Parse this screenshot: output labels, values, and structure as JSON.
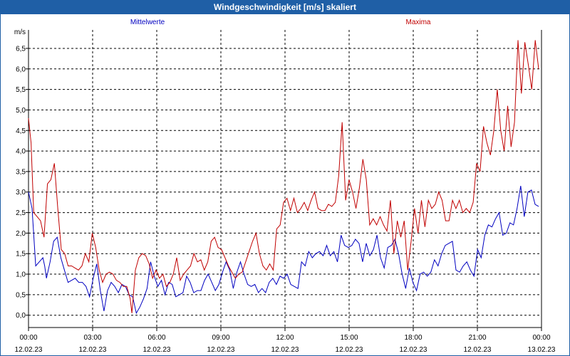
{
  "window": {
    "title": "Windgeschwindigkeit [m/s] skaliert"
  },
  "chart_data": {
    "type": "line",
    "title": "Windgeschwindigkeit [m/s] skaliert",
    "ylabel": "m/s",
    "ylim": [
      -0.3,
      6.95
    ],
    "yticks": [
      "0,0",
      "0,5",
      "1,0",
      "1,5",
      "2,0",
      "2,5",
      "3,0",
      "3,5",
      "4,0",
      "4,5",
      "5,0",
      "5,5",
      "6,0",
      "6,5"
    ],
    "xticks": [
      {
        "time": "00:00",
        "date": "12.02.23"
      },
      {
        "time": "03:00",
        "date": "12.02.23"
      },
      {
        "time": "06:00",
        "date": "12.02.23"
      },
      {
        "time": "09:00",
        "date": "12.02.23"
      },
      {
        "time": "12:00",
        "date": "12.02.23"
      },
      {
        "time": "15:00",
        "date": "12.02.23"
      },
      {
        "time": "18:00",
        "date": "12.02.23"
      },
      {
        "time": "21:00",
        "date": "12.02.23"
      },
      {
        "time": "00:00",
        "date": "13.02.23"
      }
    ],
    "x_unit": "hours since 12.02.23 00:00",
    "grid": true,
    "series": [
      {
        "name": "Mittelwerte",
        "color": "#0000c0",
        "points": [
          [
            0,
            3.0
          ],
          [
            0.2,
            2.6
          ],
          [
            0.4,
            1.2
          ],
          [
            0.6,
            1.3
          ],
          [
            0.8,
            1.4
          ],
          [
            0.9,
            1.2
          ],
          [
            1.0,
            0.9
          ],
          [
            1.2,
            1.3
          ],
          [
            1.4,
            1.8
          ],
          [
            1.6,
            1.9
          ],
          [
            1.8,
            1.4
          ],
          [
            2.0,
            1.1
          ],
          [
            2.2,
            0.8
          ],
          [
            2.4,
            0.85
          ],
          [
            2.6,
            0.9
          ],
          [
            2.8,
            0.8
          ],
          [
            3.0,
            0.8
          ],
          [
            3.2,
            0.7
          ],
          [
            3.4,
            0.45
          ],
          [
            3.6,
            0.9
          ],
          [
            3.8,
            1.25
          ],
          [
            4.0,
            0.6
          ],
          [
            4.2,
            0.1
          ],
          [
            4.4,
            0.6
          ],
          [
            4.6,
            0.8
          ],
          [
            4.8,
            0.7
          ],
          [
            5.0,
            0.55
          ],
          [
            5.2,
            0.75
          ],
          [
            5.4,
            0.7
          ],
          [
            5.6,
            0.5
          ],
          [
            5.8,
            0.45
          ],
          [
            6.0,
            0.05
          ],
          [
            6.2,
            0.2
          ],
          [
            6.4,
            0.4
          ],
          [
            6.6,
            0.65
          ],
          [
            6.8,
            1.3
          ],
          [
            7.0,
            0.95
          ],
          [
            7.2,
            0.7
          ],
          [
            7.4,
            0.85
          ],
          [
            7.6,
            0.5
          ],
          [
            7.8,
            0.8
          ],
          [
            8.0,
            0.75
          ],
          [
            8.2,
            0.45
          ],
          [
            8.4,
            0.5
          ],
          [
            8.6,
            0.55
          ],
          [
            8.8,
            0.95
          ],
          [
            9.0,
            0.8
          ],
          [
            9.2,
            0.55
          ],
          [
            9.4,
            0.6
          ],
          [
            9.6,
            0.6
          ],
          [
            9.8,
            0.85
          ],
          [
            10.0,
            1.0
          ],
          [
            10.2,
            0.8
          ],
          [
            10.4,
            0.6
          ],
          [
            10.6,
            0.75
          ],
          [
            10.8,
            1.05
          ],
          [
            11.0,
            1.3
          ],
          [
            11.2,
            1.1
          ],
          [
            11.4,
            0.65
          ],
          [
            11.6,
            1.05
          ],
          [
            11.8,
            1.3
          ],
          [
            12.0,
            1.0
          ],
          [
            12.2,
            0.75
          ],
          [
            12.4,
            0.7
          ],
          [
            12.6,
            0.75
          ],
          [
            12.8,
            0.55
          ],
          [
            13.0,
            0.65
          ],
          [
            13.2,
            0.55
          ],
          [
            13.4,
            0.8
          ],
          [
            13.6,
            0.9
          ],
          [
            13.8,
            0.75
          ],
          [
            14.0,
            0.95
          ],
          [
            14.2,
            0.9
          ],
          [
            14.4,
            1.0
          ],
          [
            14.6,
            0.75
          ],
          [
            14.8,
            0.7
          ],
          [
            15.0,
            0.65
          ],
          [
            15.2,
            1.3
          ],
          [
            15.4,
            1.2
          ],
          [
            15.6,
            1.55
          ],
          [
            15.8,
            1.4
          ],
          [
            16.0,
            1.5
          ],
          [
            16.2,
            1.55
          ],
          [
            16.4,
            1.45
          ],
          [
            16.6,
            1.7
          ],
          [
            16.8,
            1.45
          ],
          [
            17.0,
            1.55
          ],
          [
            17.2,
            1.3
          ],
          [
            17.4,
            1.95
          ],
          [
            17.6,
            1.7
          ],
          [
            17.8,
            1.65
          ],
          [
            18.0,
            1.7
          ],
          [
            18.2,
            1.85
          ],
          [
            18.4,
            1.75
          ],
          [
            18.6,
            1.3
          ],
          [
            18.8,
            1.75
          ],
          [
            19.0,
            1.45
          ],
          [
            19.2,
            1.6
          ],
          [
            19.4,
            1.95
          ],
          [
            19.6,
            1.4
          ],
          [
            19.8,
            1.15
          ],
          [
            20.0,
            1.65
          ],
          [
            20.2,
            1.7
          ],
          [
            20.4,
            1.85
          ],
          [
            20.6,
            1.5
          ],
          [
            20.8,
            1.0
          ],
          [
            21.0,
            0.65
          ],
          [
            21.2,
            1.15
          ],
          [
            21.4,
            0.8
          ],
          [
            21.6,
            0.6
          ],
          [
            21.8,
            1.0
          ],
          [
            22.0,
            1.05
          ],
          [
            22.2,
            0.95
          ],
          [
            22.4,
            1.05
          ],
          [
            22.6,
            1.35
          ],
          [
            22.8,
            1.2
          ],
          [
            23.0,
            1.5
          ],
          [
            23.2,
            1.7
          ],
          [
            23.4,
            1.75
          ],
          [
            23.6,
            1.8
          ],
          [
            23.8,
            1.1
          ],
          [
            24.0,
            1.05
          ],
          [
            24.2,
            1.2
          ],
          [
            24.4,
            1.3
          ],
          [
            24.6,
            1.1
          ],
          [
            24.8,
            0.95
          ],
          [
            25.0,
            1.6
          ],
          [
            25.2,
            1.4
          ],
          [
            25.4,
            1.95
          ],
          [
            25.6,
            2.2
          ],
          [
            25.8,
            2.15
          ],
          [
            26.0,
            2.35
          ],
          [
            26.2,
            2.5
          ],
          [
            26.4,
            1.95
          ],
          [
            26.6,
            2.0
          ],
          [
            26.8,
            2.25
          ],
          [
            27.0,
            2.2
          ],
          [
            27.2,
            2.6
          ],
          [
            27.4,
            3.15
          ],
          [
            27.6,
            2.4
          ],
          [
            27.8,
            3.0
          ],
          [
            28.0,
            3.05
          ],
          [
            28.2,
            2.7
          ],
          [
            28.4,
            2.65
          ]
        ]
      },
      {
        "name": "Maxima",
        "color": "#c00000",
        "points": [
          [
            0,
            4.8
          ],
          [
            0.15,
            4.2
          ],
          [
            0.3,
            2.5
          ],
          [
            0.5,
            2.4
          ],
          [
            0.7,
            2.3
          ],
          [
            0.9,
            1.9
          ],
          [
            1.1,
            3.2
          ],
          [
            1.3,
            3.3
          ],
          [
            1.5,
            3.7
          ],
          [
            1.7,
            2.6
          ],
          [
            1.9,
            1.6
          ],
          [
            2.1,
            1.5
          ],
          [
            2.3,
            1.2
          ],
          [
            2.5,
            1.2
          ],
          [
            2.7,
            1.15
          ],
          [
            2.9,
            1.1
          ],
          [
            3.1,
            1.2
          ],
          [
            3.3,
            1.5
          ],
          [
            3.5,
            1.3
          ],
          [
            3.7,
            2.0
          ],
          [
            3.9,
            1.65
          ],
          [
            4.1,
            1.1
          ],
          [
            4.3,
            0.8
          ],
          [
            4.5,
            1.0
          ],
          [
            4.7,
            1.05
          ],
          [
            4.9,
            1.0
          ],
          [
            5.1,
            0.85
          ],
          [
            5.3,
            0.8
          ],
          [
            5.5,
            0.7
          ],
          [
            5.7,
            0.7
          ],
          [
            5.9,
            0.4
          ],
          [
            6.0,
            0.05
          ],
          [
            6.2,
            1.1
          ],
          [
            6.4,
            1.4
          ],
          [
            6.6,
            1.5
          ],
          [
            6.8,
            1.45
          ],
          [
            7.0,
            1.25
          ],
          [
            7.2,
            0.9
          ],
          [
            7.4,
            1.1
          ],
          [
            7.6,
            0.9
          ],
          [
            7.8,
            1.0
          ],
          [
            8.0,
            0.7
          ],
          [
            8.2,
            0.8
          ],
          [
            8.4,
            1.0
          ],
          [
            8.6,
            1.4
          ],
          [
            8.8,
            0.85
          ],
          [
            9.0,
            1.0
          ],
          [
            9.2,
            1.1
          ],
          [
            9.4,
            1.2
          ],
          [
            9.6,
            1.5
          ],
          [
            9.8,
            1.3
          ],
          [
            10.0,
            1.35
          ],
          [
            10.2,
            1.1
          ],
          [
            10.4,
            1.3
          ],
          [
            10.6,
            1.8
          ],
          [
            10.8,
            1.9
          ],
          [
            11.0,
            1.65
          ],
          [
            11.2,
            1.6
          ],
          [
            11.4,
            1.4
          ],
          [
            11.6,
            1.2
          ],
          [
            11.8,
            1.05
          ],
          [
            12.0,
            0.9
          ],
          [
            12.2,
            1.0
          ],
          [
            12.4,
            1.05
          ],
          [
            12.6,
            1.3
          ],
          [
            12.8,
            1.55
          ],
          [
            13.0,
            1.8
          ],
          [
            13.2,
            2.0
          ],
          [
            13.4,
            1.5
          ],
          [
            13.6,
            1.2
          ],
          [
            13.8,
            1.1
          ],
          [
            14.0,
            1.25
          ],
          [
            14.2,
            1.1
          ],
          [
            14.4,
            2.1
          ],
          [
            14.6,
            2.2
          ],
          [
            14.8,
            2.75
          ],
          [
            15.0,
            2.85
          ],
          [
            15.2,
            2.55
          ],
          [
            15.4,
            2.85
          ],
          [
            15.6,
            2.5
          ],
          [
            15.8,
            2.6
          ],
          [
            16.0,
            2.75
          ],
          [
            16.2,
            2.55
          ],
          [
            16.4,
            2.8
          ],
          [
            16.6,
            3.0
          ],
          [
            16.8,
            2.6
          ],
          [
            17.0,
            2.55
          ],
          [
            17.2,
            2.55
          ],
          [
            17.4,
            2.7
          ],
          [
            17.6,
            2.65
          ],
          [
            17.8,
            2.75
          ],
          [
            18.0,
            3.4
          ],
          [
            18.2,
            4.7
          ],
          [
            18.4,
            2.8
          ],
          [
            18.6,
            3.3
          ],
          [
            18.8,
            3.0
          ],
          [
            19.0,
            2.6
          ],
          [
            19.2,
            3.1
          ],
          [
            19.4,
            3.8
          ],
          [
            19.6,
            3.3
          ],
          [
            19.8,
            2.2
          ],
          [
            20.0,
            2.35
          ],
          [
            20.2,
            2.2
          ],
          [
            20.4,
            2.4
          ],
          [
            20.6,
            2.2
          ],
          [
            20.8,
            2.05
          ],
          [
            21.0,
            2.8
          ],
          [
            21.2,
            1.5
          ],
          [
            21.4,
            2.3
          ],
          [
            21.6,
            1.9
          ],
          [
            21.8,
            2.3
          ],
          [
            22.0,
            1.1
          ],
          [
            22.2,
            1.8
          ],
          [
            22.4,
            2.6
          ],
          [
            22.6,
            2.0
          ],
          [
            22.8,
            2.8
          ],
          [
            23.0,
            2.15
          ],
          [
            23.2,
            2.8
          ],
          [
            23.4,
            2.6
          ],
          [
            23.6,
            2.7
          ],
          [
            23.8,
            3.0
          ],
          [
            24.0,
            2.8
          ],
          [
            24.2,
            2.3
          ],
          [
            24.4,
            2.3
          ],
          [
            24.6,
            2.8
          ],
          [
            24.8,
            2.6
          ],
          [
            25.0,
            2.8
          ],
          [
            25.2,
            2.5
          ],
          [
            25.4,
            2.6
          ],
          [
            25.6,
            2.5
          ],
          [
            25.8,
            2.75
          ],
          [
            26.0,
            3.7
          ],
          [
            26.2,
            3.5
          ],
          [
            26.4,
            4.6
          ],
          [
            26.6,
            4.2
          ],
          [
            26.8,
            3.9
          ],
          [
            27.0,
            4.5
          ],
          [
            27.2,
            5.5
          ],
          [
            27.4,
            4.5
          ],
          [
            27.6,
            4.0
          ],
          [
            27.8,
            5.1
          ],
          [
            28.0,
            4.1
          ],
          [
            28.2,
            4.7
          ],
          [
            28.4,
            6.7
          ],
          [
            28.6,
            5.4
          ],
          [
            28.8,
            6.65
          ],
          [
            29.0,
            6.1
          ],
          [
            29.2,
            5.5
          ],
          [
            29.4,
            6.7
          ],
          [
            29.6,
            6.0
          ]
        ]
      }
    ]
  }
}
